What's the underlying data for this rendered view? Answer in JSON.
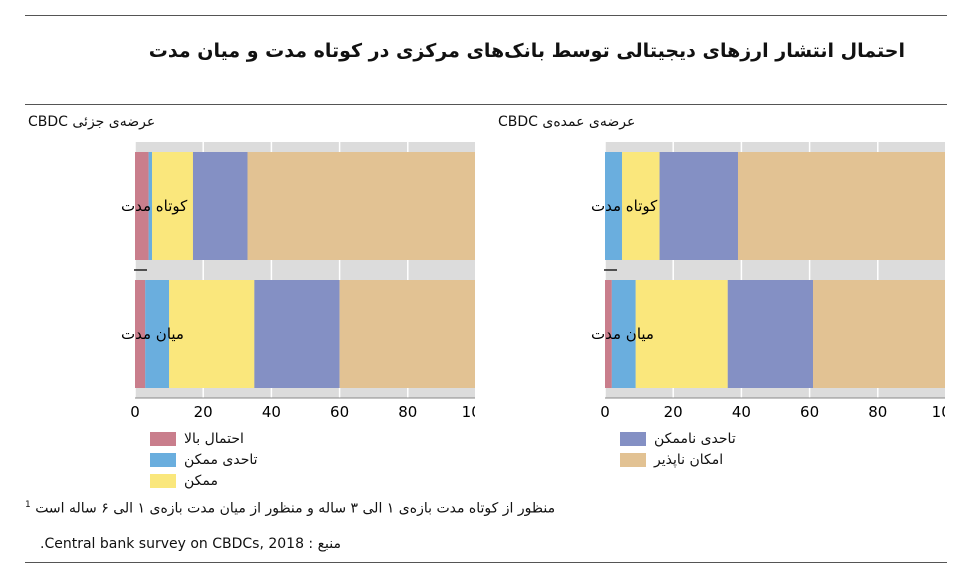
{
  "title": "احتمال انتشار ارزهای دیجیتالی توسط بانک‌های مرکزی در کوتاه مدت و میان مدت",
  "colors": {
    "احتمال بالا": "#c97e8c",
    "تاحدی ممکن": "#6aaede",
    "ممکن": "#fae77c",
    "تاحدی ناممکن": "#8490c4",
    "امکان ناپذیر": "#e2c293",
    "panel_bg": "#dcdcdc"
  },
  "legend_left": [
    "احتمال بالا",
    "تاحدی ممکن",
    "ممکن"
  ],
  "legend_right": [
    "تاحدی ناممکن",
    "امکان ناپذیر"
  ],
  "chart_data": [
    {
      "type": "bar",
      "orientation": "horizontal",
      "stacked": true,
      "title": "عرضه‌ی جزئی CBDC",
      "categories": [
        "کوتاه مدت",
        "میان مدت"
      ],
      "xlim": [
        0,
        100
      ],
      "xticks": [
        0,
        20,
        40,
        60,
        80,
        100
      ],
      "series": [
        {
          "name": "احتمال بالا",
          "values": [
            4,
            3
          ]
        },
        {
          "name": "تاحدی ممکن",
          "values": [
            1,
            7
          ]
        },
        {
          "name": "ممکن",
          "values": [
            12,
            25
          ]
        },
        {
          "name": "تاحدی ناممکن",
          "values": [
            16,
            25
          ]
        },
        {
          "name": "امکان ناپذیر",
          "values": [
            67,
            40
          ]
        }
      ]
    },
    {
      "type": "bar",
      "orientation": "horizontal",
      "stacked": true,
      "title": "عرضه‌ی عمده‌ی CBDC",
      "categories": [
        "کوتاه مدت",
        "میان مدت"
      ],
      "xlim": [
        0,
        100
      ],
      "xticks": [
        0,
        20,
        40,
        60,
        80,
        100
      ],
      "series": [
        {
          "name": "احتمال بالا",
          "values": [
            0,
            2
          ]
        },
        {
          "name": "تاحدی ممکن",
          "values": [
            5,
            7
          ]
        },
        {
          "name": "ممکن",
          "values": [
            11,
            27
          ]
        },
        {
          "name": "تاحدی ناممکن",
          "values": [
            23,
            25
          ]
        },
        {
          "name": "امکان ناپذیر",
          "values": [
            61,
            39
          ]
        }
      ]
    }
  ],
  "footnote_mark": "1",
  "footnote": "منظور از کوتاه مدت بازه‌ی ۱ الی ۳ ساله و منظور از میان مدت بازه‌ی ۱ الی ۶ ساله است",
  "source": "منبع : Central bank survey on CBDCs, 2018."
}
